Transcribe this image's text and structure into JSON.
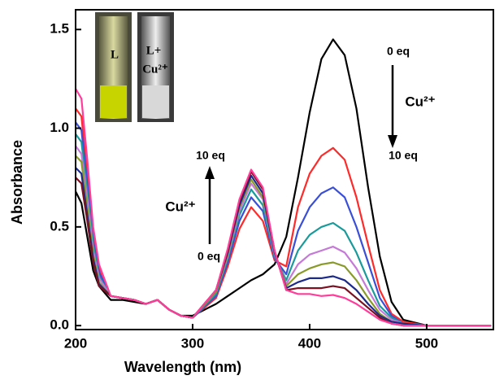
{
  "chart_data": {
    "type": "line",
    "xlabel": "Wavelength (nm)",
    "ylabel": "Absorbance",
    "x": [
      200,
      205,
      210,
      215,
      220,
      230,
      240,
      250,
      260,
      270,
      280,
      290,
      300,
      320,
      330,
      340,
      350,
      360,
      370,
      380,
      390,
      400,
      410,
      420,
      430,
      440,
      450,
      460,
      470,
      480,
      500,
      555
    ],
    "series": [
      {
        "color": "#000000",
        "values": [
          0.68,
          0.62,
          0.45,
          0.28,
          0.2,
          0.13,
          0.13,
          0.12,
          0.11,
          0.13,
          0.08,
          0.05,
          0.05,
          0.11,
          0.15,
          0.19,
          0.23,
          0.26,
          0.31,
          0.45,
          0.75,
          1.08,
          1.35,
          1.45,
          1.37,
          1.1,
          0.7,
          0.35,
          0.12,
          0.03,
          0,
          0
        ]
      },
      {
        "color": "#ff2a2a",
        "values": [
          1.1,
          1.06,
          0.77,
          0.46,
          0.29,
          0.15,
          0.14,
          0.13,
          0.11,
          0.13,
          0.08,
          0.05,
          0.04,
          0.14,
          0.3,
          0.49,
          0.6,
          0.53,
          0.33,
          0.3,
          0.6,
          0.77,
          0.86,
          0.9,
          0.84,
          0.65,
          0.41,
          0.18,
          0.06,
          0.02,
          0,
          0
        ]
      },
      {
        "color": "#3a4fd8",
        "values": [
          1.03,
          0.99,
          0.72,
          0.43,
          0.27,
          0.15,
          0.14,
          0.13,
          0.11,
          0.13,
          0.08,
          0.05,
          0.04,
          0.15,
          0.32,
          0.53,
          0.65,
          0.58,
          0.34,
          0.26,
          0.48,
          0.6,
          0.67,
          0.7,
          0.65,
          0.5,
          0.32,
          0.14,
          0.05,
          0.01,
          0,
          0
        ]
      },
      {
        "color": "#1a9a9a",
        "values": [
          0.97,
          0.93,
          0.68,
          0.41,
          0.25,
          0.15,
          0.14,
          0.13,
          0.11,
          0.13,
          0.08,
          0.05,
          0.04,
          0.16,
          0.34,
          0.56,
          0.69,
          0.61,
          0.35,
          0.23,
          0.38,
          0.46,
          0.5,
          0.52,
          0.48,
          0.37,
          0.23,
          0.1,
          0.04,
          0.01,
          0,
          0
        ]
      },
      {
        "color": "#c47ad6",
        "values": [
          0.91,
          0.87,
          0.64,
          0.38,
          0.24,
          0.15,
          0.14,
          0.13,
          0.11,
          0.13,
          0.08,
          0.05,
          0.04,
          0.17,
          0.35,
          0.58,
          0.72,
          0.64,
          0.36,
          0.21,
          0.31,
          0.36,
          0.38,
          0.4,
          0.37,
          0.29,
          0.18,
          0.08,
          0.03,
          0.01,
          0,
          0
        ]
      },
      {
        "color": "#8a9a2a",
        "values": [
          0.86,
          0.83,
          0.6,
          0.36,
          0.22,
          0.15,
          0.14,
          0.13,
          0.11,
          0.13,
          0.08,
          0.05,
          0.04,
          0.17,
          0.36,
          0.6,
          0.74,
          0.65,
          0.37,
          0.2,
          0.26,
          0.29,
          0.31,
          0.32,
          0.3,
          0.23,
          0.14,
          0.06,
          0.02,
          0.01,
          0,
          0
        ]
      },
      {
        "color": "#1c2a8a",
        "values": [
          0.8,
          0.77,
          0.56,
          0.34,
          0.21,
          0.15,
          0.14,
          0.13,
          0.11,
          0.13,
          0.08,
          0.05,
          0.04,
          0.18,
          0.37,
          0.61,
          0.76,
          0.67,
          0.37,
          0.19,
          0.22,
          0.24,
          0.24,
          0.25,
          0.23,
          0.18,
          0.11,
          0.05,
          0.02,
          0.01,
          0,
          0
        ]
      },
      {
        "color": "#7a1020",
        "values": [
          0.75,
          0.72,
          0.53,
          0.32,
          0.2,
          0.15,
          0.14,
          0.13,
          0.11,
          0.13,
          0.08,
          0.05,
          0.04,
          0.18,
          0.38,
          0.63,
          0.78,
          0.69,
          0.38,
          0.18,
          0.19,
          0.19,
          0.19,
          0.2,
          0.19,
          0.14,
          0.09,
          0.04,
          0.01,
          0,
          0,
          0
        ]
      },
      {
        "color": "#ff3d9a",
        "values": [
          1.2,
          1.15,
          0.84,
          0.5,
          0.31,
          0.15,
          0.14,
          0.13,
          0.11,
          0.13,
          0.08,
          0.05,
          0.04,
          0.18,
          0.39,
          0.64,
          0.79,
          0.7,
          0.38,
          0.18,
          0.16,
          0.16,
          0.15,
          0.155,
          0.14,
          0.11,
          0.07,
          0.03,
          0.01,
          0,
          0,
          0
        ]
      }
    ],
    "xlim": [
      200,
      557
    ],
    "xticks": [
      200,
      300,
      400,
      500
    ],
    "ylim": [
      -0.02,
      1.6
    ],
    "yticks": [
      {
        "value": 0,
        "label": "0.0"
      },
      0.5,
      {
        "value": 1,
        "label": "1.0"
      },
      1.5
    ],
    "annotations": [
      "0 eq",
      "Cu²⁺",
      "10 eq",
      "10 eq",
      "Cu²⁺",
      "0 eq"
    ],
    "inset_labels": [
      "L",
      "L+",
      "Cu²⁺"
    ]
  }
}
